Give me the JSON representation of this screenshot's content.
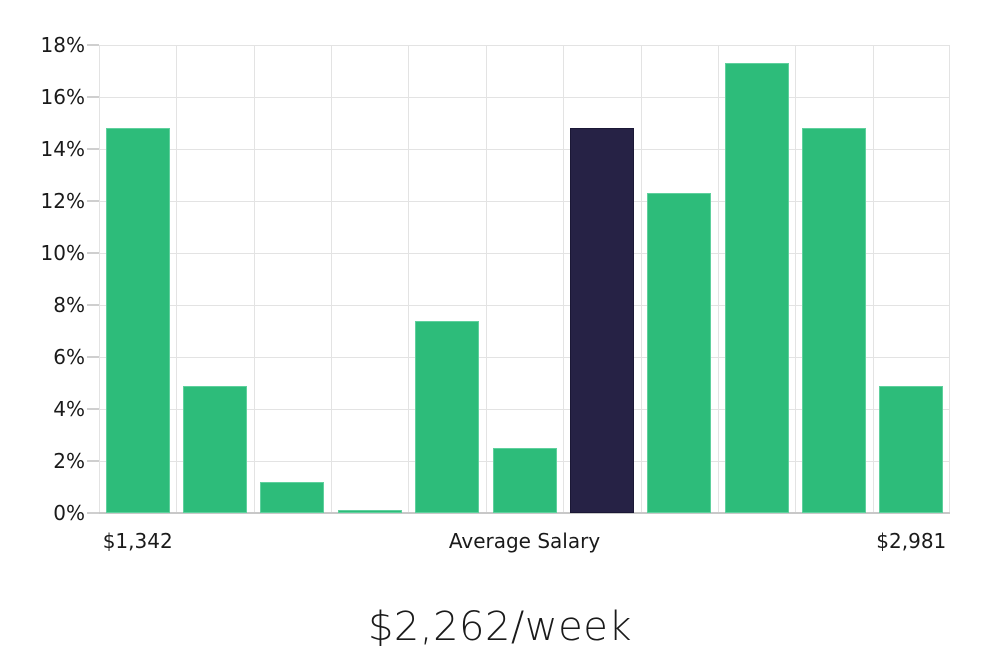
{
  "chart_data": {
    "type": "bar",
    "title": "$2,262/week",
    "values": [
      14.8,
      4.9,
      1.2,
      0.1,
      7.4,
      2.5,
      14.8,
      12.3,
      17.3,
      14.8,
      4.9
    ],
    "highlight_index": 6,
    "x_tick_labels": [
      {
        "index": 0,
        "label": "$1,342"
      },
      {
        "index": 5,
        "label": "Average Salary"
      },
      {
        "index": 10,
        "label": "$2,981"
      }
    ],
    "y_ticks": [
      "0%",
      "2%",
      "4%",
      "6%",
      "8%",
      "10%",
      "12%",
      "14%",
      "16%",
      "18%"
    ],
    "y_tick_step": 2,
    "ylim": [
      0,
      18
    ],
    "grid": true,
    "legend": false,
    "colors": {
      "bar": "#2dbc7a",
      "bar_border": "#5fd09d",
      "highlight": "#262245",
      "highlight_border": "#1b1836",
      "gridline": "#e3e3e3",
      "axis_line": "#c8c8c8",
      "tick": "#cfcfcf",
      "text": "#1a1a1a"
    }
  }
}
